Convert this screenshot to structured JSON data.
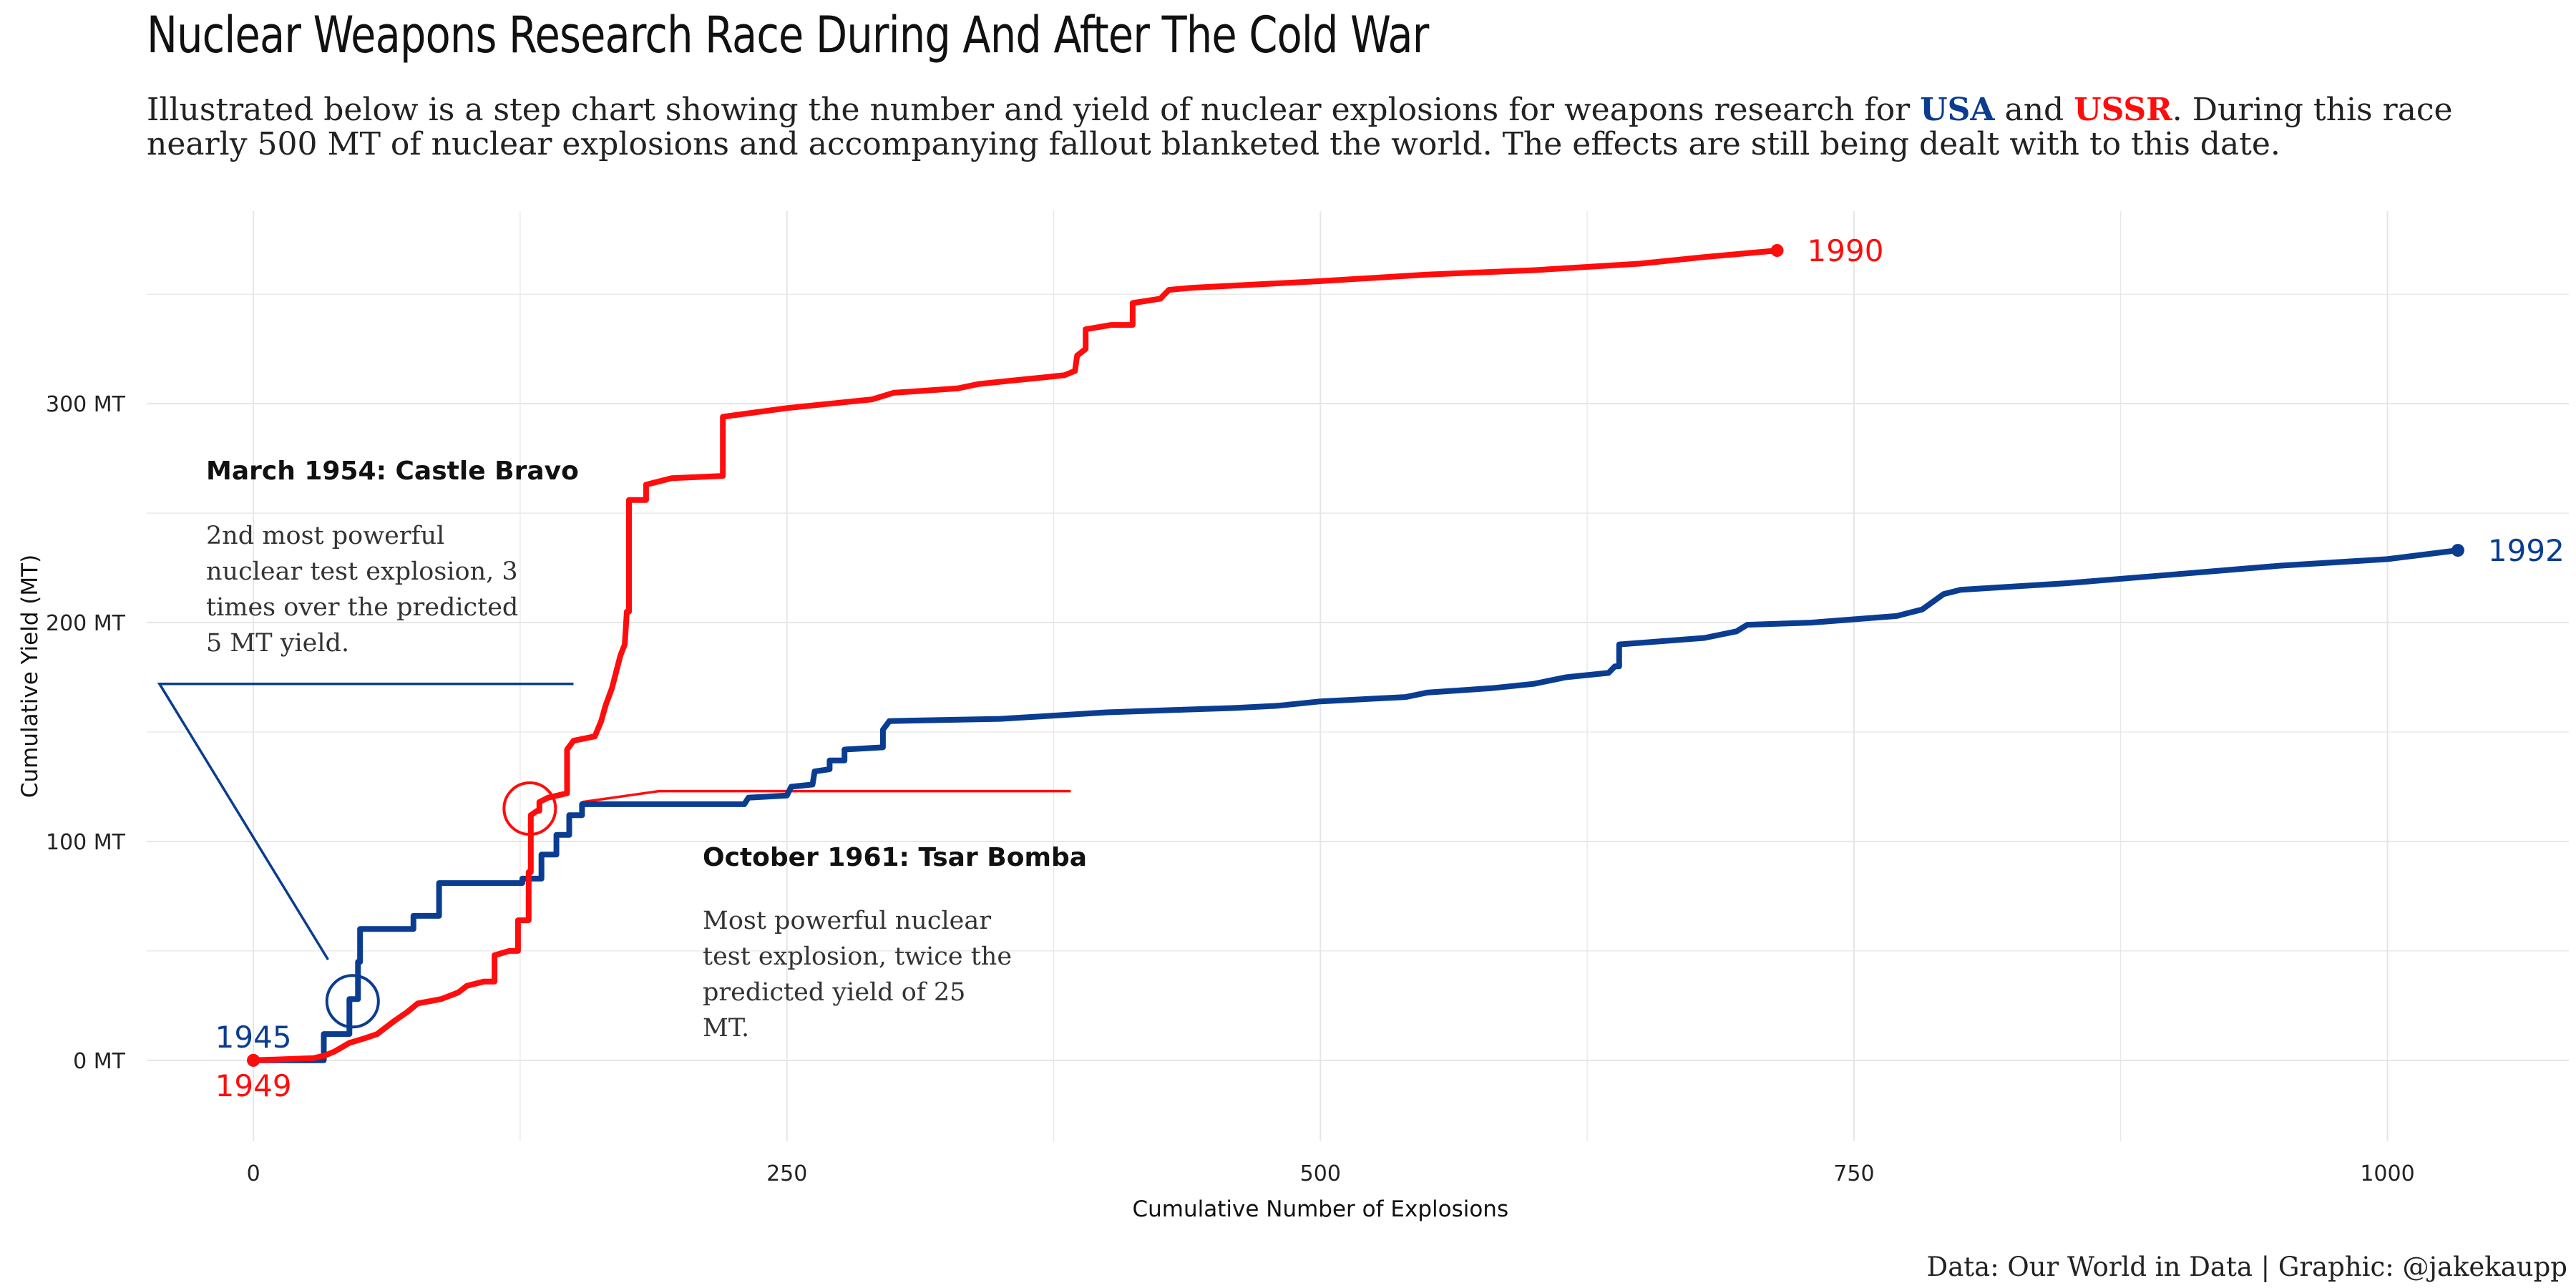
{
  "header": {
    "title": "Nuclear Weapons Research Race During And After The Cold War",
    "subtitle_pre": "Illustrated below is a step chart showing the number and yield of nuclear explosions for weapons research for ",
    "subtitle_usa": "USA",
    "subtitle_and": " and ",
    "subtitle_ussr": "USSR",
    "subtitle_post": ". During this race nearly 500 MT of nuclear explosions and accompanying fallout blanketed the world. The effects are still being dealt with to this date."
  },
  "caption": "Data: Our World in Data | Graphic: @jakekaupp",
  "colors": {
    "usa": "#0a3d91",
    "ussr": "#ff0d0d",
    "grid": "#e6e6e6"
  },
  "chart_data": {
    "type": "line",
    "step": true,
    "xlabel": "Cumulative Number of Explosions",
    "ylabel": "Cumulative Yield (MT)",
    "xlim": [
      -50,
      1085
    ],
    "ylim": [
      -37,
      388
    ],
    "x_ticks": [
      0,
      250,
      500,
      750,
      1000
    ],
    "y_ticks": [
      0,
      100,
      200,
      300
    ],
    "y_tick_labels": [
      "0 MT",
      "100 MT",
      "200 MT",
      "300 MT"
    ],
    "grid": true,
    "series": [
      {
        "name": "USA",
        "color": "#0a3d91",
        "start_label": "1945",
        "end_label": "1992",
        "points": [
          [
            0,
            0
          ],
          [
            33,
            0
          ],
          [
            33,
            12
          ],
          [
            45,
            12
          ],
          [
            45,
            28
          ],
          [
            49,
            28
          ],
          [
            49,
            45
          ],
          [
            50,
            45
          ],
          [
            50,
            60
          ],
          [
            75,
            60
          ],
          [
            75,
            66
          ],
          [
            87,
            66
          ],
          [
            87,
            81
          ],
          [
            126,
            81
          ],
          [
            126,
            83
          ],
          [
            135,
            83
          ],
          [
            135,
            94
          ],
          [
            142,
            94
          ],
          [
            142,
            103
          ],
          [
            148,
            103
          ],
          [
            148,
            112
          ],
          [
            154,
            112
          ],
          [
            154,
            117
          ],
          [
            230,
            117
          ],
          [
            232,
            120
          ],
          [
            250,
            121
          ],
          [
            252,
            125
          ],
          [
            262,
            126
          ],
          [
            263,
            132
          ],
          [
            270,
            133
          ],
          [
            270,
            137
          ],
          [
            277,
            137
          ],
          [
            277,
            142
          ],
          [
            295,
            143
          ],
          [
            295,
            151
          ],
          [
            298,
            155
          ],
          [
            350,
            156
          ],
          [
            400,
            159
          ],
          [
            430,
            160
          ],
          [
            460,
            161
          ],
          [
            480,
            162
          ],
          [
            500,
            164
          ],
          [
            540,
            166
          ],
          [
            550,
            168
          ],
          [
            580,
            170
          ],
          [
            600,
            172
          ],
          [
            615,
            175
          ],
          [
            635,
            177
          ],
          [
            638,
            180
          ],
          [
            640,
            180
          ],
          [
            640,
            190
          ],
          [
            680,
            193
          ],
          [
            695,
            196
          ],
          [
            700,
            199
          ],
          [
            730,
            200
          ],
          [
            770,
            203
          ],
          [
            782,
            206
          ],
          [
            792,
            213
          ],
          [
            800,
            215
          ],
          [
            850,
            218
          ],
          [
            900,
            222
          ],
          [
            950,
            226
          ],
          [
            1000,
            229
          ],
          [
            1033,
            233
          ]
        ]
      },
      {
        "name": "USSR",
        "color": "#ff0d0d",
        "start_label": "1949",
        "end_label": "1990",
        "points": [
          [
            0,
            0
          ],
          [
            28,
            1
          ],
          [
            33,
            2
          ],
          [
            38,
            4
          ],
          [
            45,
            8
          ],
          [
            52,
            10
          ],
          [
            58,
            12
          ],
          [
            62,
            15
          ],
          [
            66,
            18
          ],
          [
            72,
            22
          ],
          [
            77,
            26
          ],
          [
            88,
            28
          ],
          [
            96,
            31
          ],
          [
            100,
            34
          ],
          [
            108,
            36
          ],
          [
            113,
            36
          ],
          [
            113,
            48
          ],
          [
            120,
            50
          ],
          [
            124,
            50
          ],
          [
            124,
            64
          ],
          [
            129,
            64
          ],
          [
            129,
            86
          ],
          [
            130,
            86
          ],
          [
            130,
            112
          ],
          [
            133,
            114
          ],
          [
            134,
            114
          ],
          [
            134,
            118
          ],
          [
            138,
            120
          ],
          [
            147,
            122
          ],
          [
            147,
            142
          ],
          [
            150,
            146
          ],
          [
            160,
            148
          ],
          [
            163,
            155
          ],
          [
            165,
            162
          ],
          [
            168,
            170
          ],
          [
            172,
            185
          ],
          [
            174,
            190
          ],
          [
            175,
            205
          ],
          [
            176,
            205
          ],
          [
            176,
            256
          ],
          [
            184,
            256
          ],
          [
            184,
            263
          ],
          [
            196,
            266
          ],
          [
            220,
            267
          ],
          [
            220,
            284
          ],
          [
            220,
            294
          ],
          [
            250,
            298
          ],
          [
            270,
            300
          ],
          [
            290,
            302
          ],
          [
            300,
            305
          ],
          [
            330,
            307
          ],
          [
            340,
            309
          ],
          [
            360,
            311
          ],
          [
            370,
            312
          ],
          [
            380,
            313
          ],
          [
            385,
            315
          ],
          [
            386,
            322
          ],
          [
            390,
            325
          ],
          [
            390,
            334
          ],
          [
            402,
            336
          ],
          [
            412,
            336
          ],
          [
            412,
            346
          ],
          [
            425,
            348
          ],
          [
            429,
            352
          ],
          [
            440,
            353
          ],
          [
            500,
            356
          ],
          [
            550,
            359
          ],
          [
            600,
            361
          ],
          [
            650,
            364
          ],
          [
            680,
            367
          ],
          [
            714,
            370
          ]
        ]
      }
    ],
    "annotations": [
      {
        "title": "March 1954: Castle Bravo",
        "lines": [
          "2nd most powerful",
          "nuclear test explosion, 3",
          "times over the predicted",
          "5 MT yield."
        ],
        "series": "USA"
      },
      {
        "title": "October 1961: Tsar Bomba",
        "lines": [
          "Most powerful nuclear",
          "test explosion, twice the",
          "predicted yield of 25",
          "MT."
        ],
        "series": "USSR"
      }
    ]
  }
}
